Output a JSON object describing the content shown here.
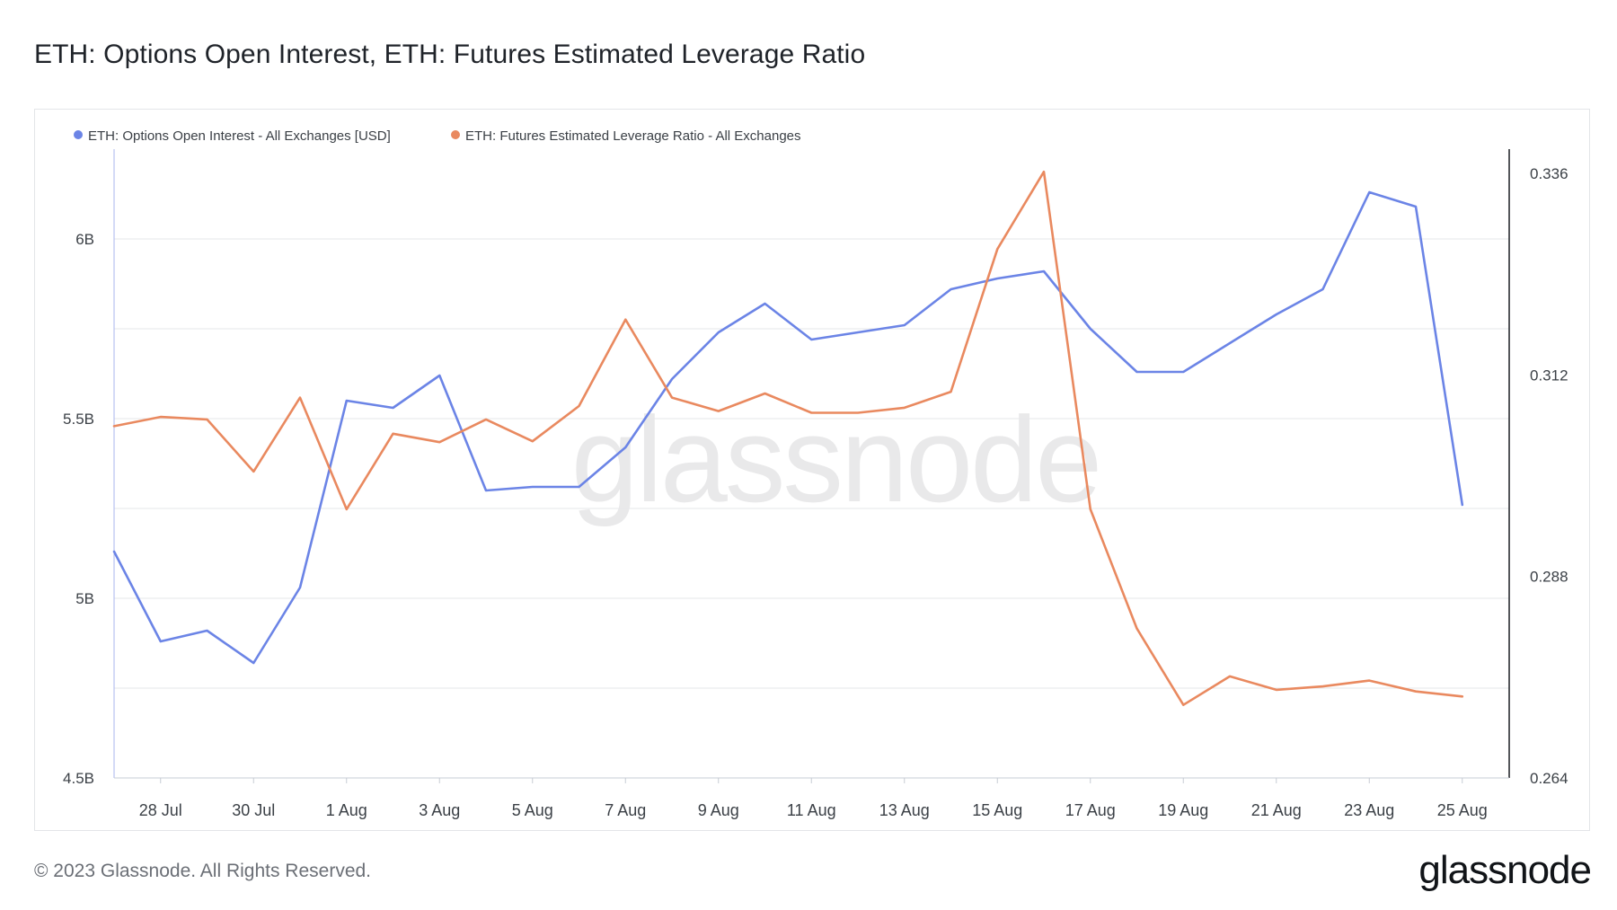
{
  "page": {
    "title": "ETH: Options Open Interest, ETH: Futures Estimated Leverage Ratio",
    "copyright": "© 2023 Glassnode. All Rights Reserved.",
    "logo_text": "glassnode",
    "watermark_text": "glassnode"
  },
  "chart_data": {
    "type": "line",
    "title": "ETH: Options Open Interest, ETH: Futures Estimated Leverage Ratio",
    "xlabel": "",
    "legend_position": "top-left",
    "grid": true,
    "x": [
      "27 Jul",
      "28 Jul",
      "29 Jul",
      "30 Jul",
      "31 Jul",
      "1 Aug",
      "2 Aug",
      "3 Aug",
      "4 Aug",
      "5 Aug",
      "6 Aug",
      "7 Aug",
      "8 Aug",
      "9 Aug",
      "10 Aug",
      "11 Aug",
      "12 Aug",
      "13 Aug",
      "14 Aug",
      "15 Aug",
      "16 Aug",
      "17 Aug",
      "18 Aug",
      "19 Aug",
      "20 Aug",
      "21 Aug",
      "22 Aug",
      "23 Aug",
      "24 Aug",
      "25 Aug"
    ],
    "x_tick_labels": [
      "28 Jul",
      "30 Jul",
      "1 Aug",
      "3 Aug",
      "5 Aug",
      "7 Aug",
      "9 Aug",
      "11 Aug",
      "13 Aug",
      "15 Aug",
      "17 Aug",
      "19 Aug",
      "21 Aug",
      "23 Aug",
      "25 Aug"
    ],
    "series": [
      {
        "name": "ETH: Options Open Interest - All Exchanges [USD]",
        "axis": "left",
        "color": "#6b84e6",
        "values": [
          5.13,
          4.88,
          4.91,
          4.82,
          5.03,
          5.55,
          5.53,
          5.62,
          5.3,
          5.31,
          5.31,
          5.42,
          5.61,
          5.74,
          5.82,
          5.72,
          5.74,
          5.76,
          5.86,
          5.89,
          5.91,
          5.75,
          5.63,
          5.63,
          5.71,
          5.79,
          5.86,
          6.13,
          6.09,
          5.26
        ]
      },
      {
        "name": "ETH: Futures Estimated Leverage Ratio - All Exchanges",
        "axis": "right",
        "color": "#e9895f",
        "values": [
          0.3059,
          0.307,
          0.3067,
          0.3005,
          0.3093,
          0.296,
          0.305,
          0.304,
          0.3067,
          0.3041,
          0.3083,
          0.3186,
          0.3093,
          0.3077,
          0.3098,
          0.3075,
          0.3075,
          0.3081,
          0.31,
          0.327,
          0.3362,
          0.296,
          0.2818,
          0.2727,
          0.2761,
          0.2745,
          0.2749,
          0.2756,
          0.2743,
          0.2737
        ]
      }
    ],
    "y_left": {
      "ylim": [
        4.5,
        6.25
      ],
      "ticks": [
        4.5,
        5.0,
        5.5,
        6.0
      ],
      "tick_labels": [
        "4.5B",
        "5B",
        "5.5B",
        "6B"
      ],
      "unit": "USD billions"
    },
    "y_right": {
      "ylim": [
        0.264,
        0.3389
      ],
      "ticks": [
        0.264,
        0.288,
        0.312,
        0.336
      ],
      "tick_labels": [
        "0.264",
        "0.288",
        "0.312",
        "0.336"
      ]
    }
  }
}
